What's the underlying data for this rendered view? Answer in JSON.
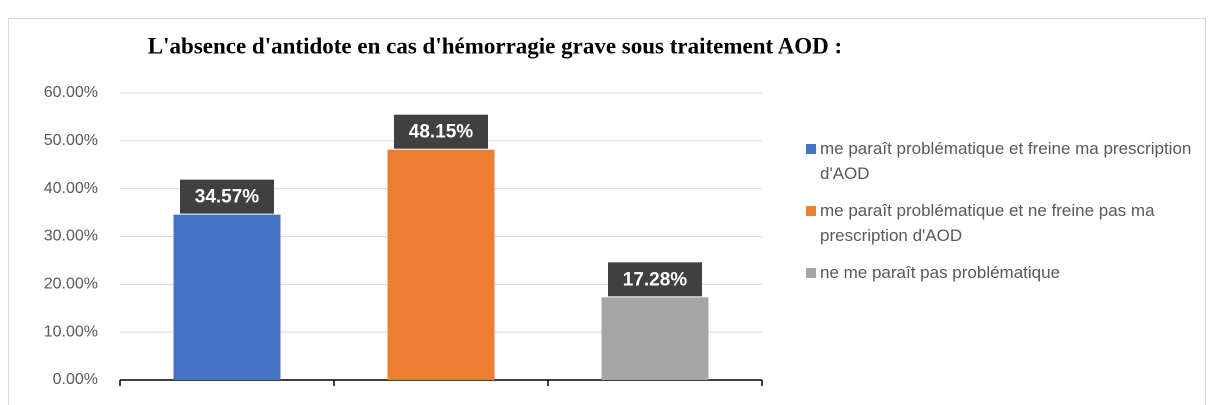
{
  "chart_data": {
    "type": "bar",
    "title": "L'absence d'antidote en cas d'hémorragie grave sous traitement AOD :",
    "categories": [
      "me paraît problématique et freine ma prescription d'AOD",
      "me paraît problématique et ne freine pas ma prescription d'AOD",
      "ne me paraît pas problématique"
    ],
    "values": [
      34.57,
      48.15,
      17.28
    ],
    "value_labels": [
      "34.57%",
      "48.15%",
      "17.28%"
    ],
    "colors": [
      "#4472c4",
      "#ed7d31",
      "#a5a5a5"
    ],
    "ylim": [
      0,
      60
    ],
    "yticks": [
      {
        "value": 0,
        "label": "0.00%"
      },
      {
        "value": 10,
        "label": "10.00%"
      },
      {
        "value": 20,
        "label": "20.00%"
      },
      {
        "value": 30,
        "label": "30.00%"
      },
      {
        "value": 40,
        "label": "40.00%"
      },
      {
        "value": 50,
        "label": "50.00%"
      },
      {
        "value": 60,
        "label": "60.00%"
      }
    ],
    "grid": true,
    "legend": "right"
  }
}
